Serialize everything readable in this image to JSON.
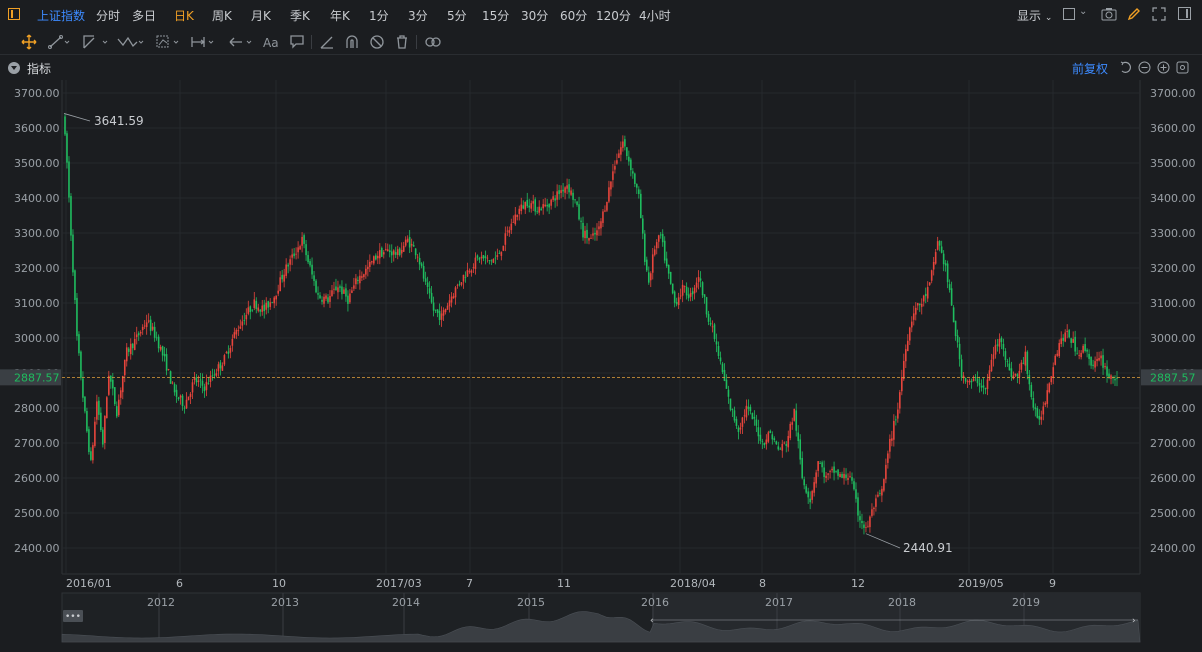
{
  "topbar": {
    "symbol": "上证指数",
    "periods": [
      "分时",
      "多日",
      "日K",
      "周K",
      "月K",
      "季K",
      "年K",
      "1分",
      "3分",
      "5分",
      "15分",
      "30分",
      "60分",
      "120分",
      "4小时"
    ],
    "active_period": "日K",
    "display_label": "显示",
    "icons": [
      "layout-icon",
      "camera-icon",
      "pencil-icon",
      "expand-icon",
      "sidebar-icon"
    ]
  },
  "toolbar": {
    "tools": [
      "move-cross-icon",
      "line-icon",
      "channel-icon",
      "wave-icon",
      "pattern-icon",
      "measure-icon",
      "arrow-icon",
      "text-icon",
      "comment-icon",
      "ruler-icon",
      "magnet-icon",
      "hide-icon",
      "trash-icon",
      "link-icon"
    ],
    "text_tool_label": "Aa"
  },
  "indicator_bar": {
    "label": "指标",
    "adjust_label": "前复权"
  },
  "chart": {
    "current_price": "2887.57",
    "high_label": "3641.59",
    "low_label": "2440.91",
    "colors": {
      "up": "#e8453c",
      "down": "#1fbd5f",
      "bg": "#1b1d20",
      "grid": "#26292d",
      "price_line": "#e3a23a"
    }
  },
  "chart_data": {
    "type": "candlestick",
    "title": "",
    "ylim": [
      2380,
      3740
    ],
    "y_ticks": [
      "3700.00",
      "3600.00",
      "3500.00",
      "3400.00",
      "3300.00",
      "3200.00",
      "3100.00",
      "3000.00",
      "2900.00",
      "2800.00",
      "2700.00",
      "2600.00",
      "2500.00",
      "2400.00"
    ],
    "x_ticks": [
      "2016/01",
      "6",
      "10",
      "2017/03",
      "7",
      "11",
      "2018/04",
      "8",
      "12",
      "2019/05",
      "9"
    ],
    "navigator_ticks": [
      "2012",
      "2013",
      "2014",
      "2015",
      "2016",
      "2017",
      "2018",
      "2019"
    ],
    "high": 3641.59,
    "low": 2440.91,
    "last": 2887.57,
    "path": [
      [
        0,
        3640
      ],
      [
        2,
        3500
      ],
      [
        4,
        3300
      ],
      [
        7,
        3000
      ],
      [
        11,
        2780
      ],
      [
        14,
        2640
      ],
      [
        17,
        2820
      ],
      [
        20,
        2700
      ],
      [
        23,
        2900
      ],
      [
        27,
        2790
      ],
      [
        32,
        2960
      ],
      [
        37,
        3000
      ],
      [
        42,
        3050
      ],
      [
        47,
        3000
      ],
      [
        52,
        2920
      ],
      [
        56,
        2840
      ],
      [
        61,
        2810
      ],
      [
        66,
        2880
      ],
      [
        71,
        2860
      ],
      [
        76,
        2900
      ],
      [
        81,
        2940
      ],
      [
        86,
        3010
      ],
      [
        91,
        3060
      ],
      [
        96,
        3100
      ],
      [
        101,
        3080
      ],
      [
        106,
        3120
      ],
      [
        111,
        3190
      ],
      [
        116,
        3240
      ],
      [
        120,
        3280
      ],
      [
        124,
        3200
      ],
      [
        128,
        3120
      ],
      [
        133,
        3110
      ],
      [
        138,
        3150
      ],
      [
        143,
        3110
      ],
      [
        148,
        3170
      ],
      [
        153,
        3200
      ],
      [
        158,
        3240
      ],
      [
        163,
        3250
      ],
      [
        168,
        3240
      ],
      [
        173,
        3280
      ],
      [
        178,
        3240
      ],
      [
        182,
        3150
      ],
      [
        186,
        3080
      ],
      [
        190,
        3060
      ],
      [
        194,
        3110
      ],
      [
        199,
        3160
      ],
      [
        204,
        3200
      ],
      [
        209,
        3230
      ],
      [
        214,
        3220
      ],
      [
        218,
        3230
      ],
      [
        223,
        3300
      ],
      [
        228,
        3360
      ],
      [
        233,
        3390
      ],
      [
        238,
        3370
      ],
      [
        243,
        3380
      ],
      [
        248,
        3410
      ],
      [
        253,
        3440
      ],
      [
        257,
        3390
      ],
      [
        261,
        3300
      ],
      [
        265,
        3280
      ],
      [
        269,
        3310
      ],
      [
        273,
        3400
      ],
      [
        277,
        3500
      ],
      [
        281,
        3560
      ],
      [
        285,
        3490
      ],
      [
        289,
        3400
      ],
      [
        292,
        3230
      ],
      [
        294,
        3160
      ],
      [
        297,
        3260
      ],
      [
        300,
        3290
      ],
      [
        303,
        3200
      ],
      [
        307,
        3100
      ],
      [
        311,
        3140
      ],
      [
        315,
        3120
      ],
      [
        319,
        3180
      ],
      [
        323,
        3080
      ],
      [
        327,
        3000
      ],
      [
        331,
        2900
      ],
      [
        335,
        2800
      ],
      [
        339,
        2740
      ],
      [
        343,
        2800
      ],
      [
        347,
        2760
      ],
      [
        351,
        2700
      ],
      [
        355,
        2730
      ],
      [
        359,
        2680
      ],
      [
        363,
        2700
      ],
      [
        367,
        2790
      ],
      [
        371,
        2600
      ],
      [
        375,
        2540
      ],
      [
        379,
        2650
      ],
      [
        383,
        2600
      ],
      [
        387,
        2620
      ],
      [
        391,
        2600
      ],
      [
        395,
        2610
      ],
      [
        399,
        2500
      ],
      [
        403,
        2450
      ],
      [
        407,
        2520
      ],
      [
        411,
        2560
      ],
      [
        415,
        2700
      ],
      [
        419,
        2800
      ],
      [
        423,
        2980
      ],
      [
        427,
        3080
      ],
      [
        431,
        3100
      ],
      [
        435,
        3150
      ],
      [
        439,
        3280
      ],
      [
        443,
        3200
      ],
      [
        447,
        3050
      ],
      [
        451,
        2900
      ],
      [
        455,
        2870
      ],
      [
        459,
        2880
      ],
      [
        463,
        2850
      ],
      [
        467,
        2960
      ],
      [
        471,
        3000
      ],
      [
        475,
        2900
      ],
      [
        479,
        2890
      ],
      [
        483,
        2950
      ],
      [
        486,
        2830
      ],
      [
        489,
        2760
      ],
      [
        492,
        2800
      ],
      [
        495,
        2880
      ],
      [
        498,
        2950
      ],
      [
        501,
        3000
      ],
      [
        505,
        3010
      ],
      [
        509,
        2960
      ],
      [
        513,
        2970
      ],
      [
        517,
        2920
      ],
      [
        521,
        2940
      ],
      [
        525,
        2890
      ],
      [
        529,
        2887.57
      ]
    ]
  }
}
